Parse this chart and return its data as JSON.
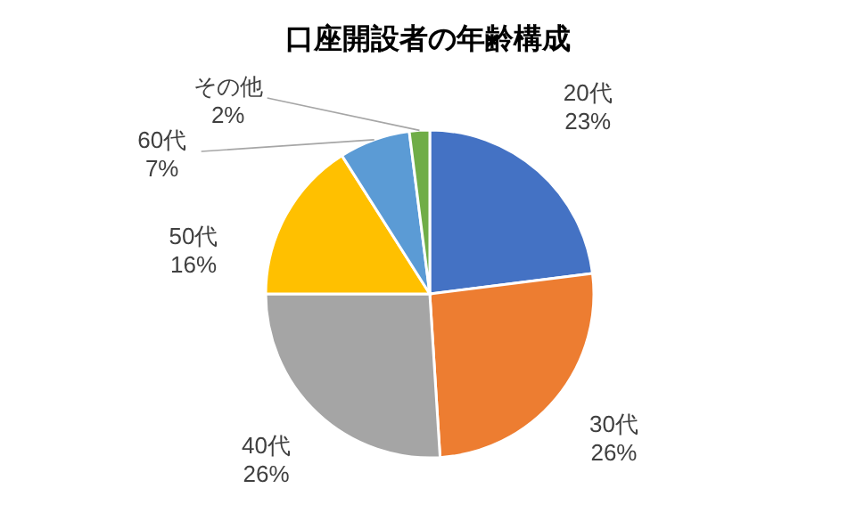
{
  "chart_data": {
    "type": "pie",
    "title": "口座開設者の年齢構成",
    "categories": [
      "20代",
      "30代",
      "40代",
      "50代",
      "60代",
      "その他"
    ],
    "values": [
      23,
      26,
      26,
      16,
      7,
      2
    ],
    "colors": [
      "#4472c4",
      "#ed7d31",
      "#a5a5a5",
      "#ffc000",
      "#5b9bd5",
      "#70ad47"
    ],
    "value_labels": [
      "23%",
      "26%",
      "26%",
      "16%",
      "7%",
      "2%"
    ]
  }
}
